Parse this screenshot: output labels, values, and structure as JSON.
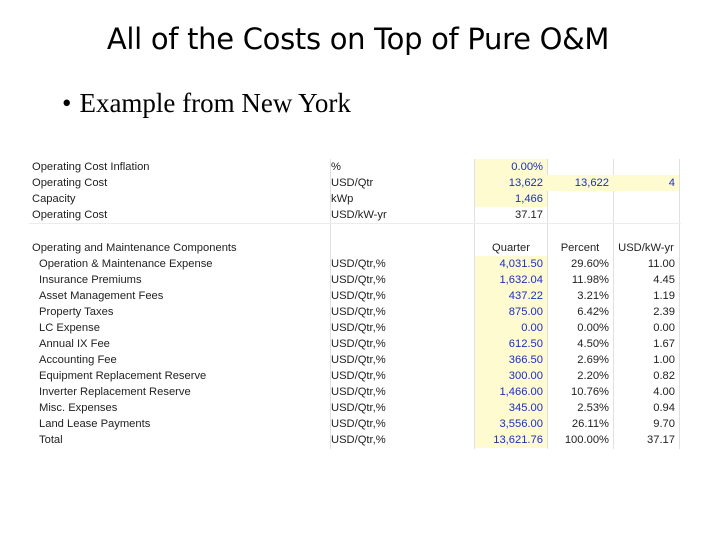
{
  "slide": {
    "title": "All of the Costs on Top of Pure O&M",
    "bullet": "Example from New York",
    "bullet_marker": "•"
  },
  "top_rows": [
    {
      "label": "Operating Cost Inflation",
      "unit": "%",
      "v1": "0.00%",
      "v2": "",
      "v3": ""
    },
    {
      "label": "Operating Cost",
      "unit": "USD/Qtr",
      "v1": "13,622",
      "v2": "13,622",
      "v3": "4"
    },
    {
      "label": "Capacity",
      "unit": "kWp",
      "v1": "1,466",
      "v2": "",
      "v3": ""
    },
    {
      "label": "Operating Cost",
      "unit": "USD/kW-yr",
      "v1": "37.17",
      "v2": "",
      "v3": ""
    }
  ],
  "components": {
    "section_label": "Operating and Maintenance Components",
    "headers": {
      "quarter": "Quarter",
      "percent": "Percent",
      "usd_kw_yr": "USD/kW-yr"
    },
    "rows": [
      {
        "label": "Operation & Maintenance Expense",
        "unit": "USD/Qtr,%",
        "quarter": "4,031.50",
        "percent": "29.60%",
        "usd_kw_yr": "11.00"
      },
      {
        "label": "Insurance Premiums",
        "unit": "USD/Qtr,%",
        "quarter": "1,632.04",
        "percent": "11.98%",
        "usd_kw_yr": "4.45"
      },
      {
        "label": "Asset Management Fees",
        "unit": "USD/Qtr,%",
        "quarter": "437.22",
        "percent": "3.21%",
        "usd_kw_yr": "1.19"
      },
      {
        "label": "Property Taxes",
        "unit": "USD/Qtr,%",
        "quarter": "875.00",
        "percent": "6.42%",
        "usd_kw_yr": "2.39"
      },
      {
        "label": "LC Expense",
        "unit": "USD/Qtr,%",
        "quarter": "0.00",
        "percent": "0.00%",
        "usd_kw_yr": "0.00"
      },
      {
        "label": "Annual IX Fee",
        "unit": "USD/Qtr,%",
        "quarter": "612.50",
        "percent": "4.50%",
        "usd_kw_yr": "1.67"
      },
      {
        "label": "Accounting Fee",
        "unit": "USD/Qtr,%",
        "quarter": "366.50",
        "percent": "2.69%",
        "usd_kw_yr": "1.00"
      },
      {
        "label": "Equipment Replacement Reserve",
        "unit": "USD/Qtr,%",
        "quarter": "300.00",
        "percent": "2.20%",
        "usd_kw_yr": "0.82"
      },
      {
        "label": "Inverter Replacement Reserve",
        "unit": "USD/Qtr,%",
        "quarter": "1,466.00",
        "percent": "10.76%",
        "usd_kw_yr": "4.00"
      },
      {
        "label": "Misc. Expenses",
        "unit": "USD/Qtr,%",
        "quarter": "345.00",
        "percent": "2.53%",
        "usd_kw_yr": "0.94"
      },
      {
        "label": "Land Lease Payments",
        "unit": "USD/Qtr,%",
        "quarter": "3,556.00",
        "percent": "26.11%",
        "usd_kw_yr": "9.70"
      },
      {
        "label": "Total",
        "unit": "USD/Qtr,%",
        "quarter": "13,621.76",
        "percent": "100.00%",
        "usd_kw_yr": "37.17"
      }
    ]
  },
  "colors": {
    "input_fill": "#fffbd0",
    "input_text": "#1a2fbf",
    "text": "#222222"
  }
}
